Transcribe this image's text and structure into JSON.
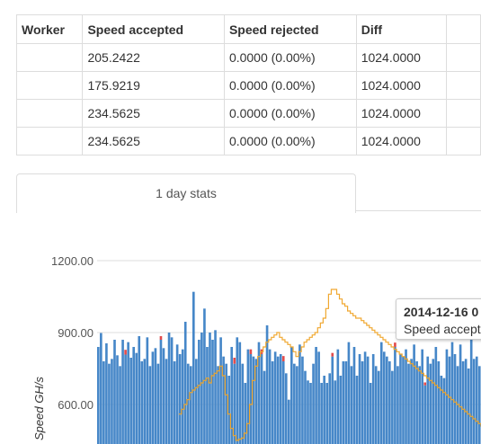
{
  "table": {
    "headers": {
      "worker": "Worker",
      "accepted": "Speed accepted",
      "rejected": "Speed rejected",
      "diff": "Diff"
    },
    "rows": [
      {
        "worker": "",
        "accepted": "205.2422",
        "rejected": "0.0000 (0.00%)",
        "diff": "1024.0000"
      },
      {
        "worker": "",
        "accepted": "175.9219",
        "rejected": "0.0000 (0.00%)",
        "diff": "1024.0000"
      },
      {
        "worker": "",
        "accepted": "234.5625",
        "rejected": "0.0000 (0.00%)",
        "diff": "1024.0000"
      },
      {
        "worker": "",
        "accepted": "234.5625",
        "rejected": "0.0000 (0.00%)",
        "diff": "1024.0000"
      }
    ]
  },
  "tabs": {
    "active_label": "1 day stats"
  },
  "tooltip": {
    "title": "2014-12-16 0",
    "line": "Speed accept"
  },
  "chart_data": {
    "type": "bar",
    "ylabel": "Speed GH/s",
    "ylim": [
      435,
      1270
    ],
    "yticks": [
      "1200.00",
      "900.00",
      "600.00"
    ],
    "ytick_values": [
      1200,
      900,
      600
    ],
    "grid": true,
    "colors": {
      "accepted": "#4687c8",
      "rejected": "#e24b4b",
      "average": "#f0a830"
    },
    "series": [
      {
        "key": "accepted",
        "values": [
          840,
          898,
          780,
          855,
          770,
          790,
          870,
          805,
          760,
          870,
          808,
          860,
          795,
          840,
          815,
          885,
          780,
          790,
          880,
          760,
          820,
          835,
          770,
          870,
          835,
          790,
          900,
          880,
          780,
          850,
          810,
          830,
          945,
          770,
          760,
          1070,
          790,
          870,
          900,
          1000,
          840,
          900,
          870,
          910,
          760,
          880,
          800,
          770,
          720,
          840,
          770,
          880,
          860,
          770,
          690,
          830,
          810,
          800,
          790,
          860,
          810,
          740,
          930,
          830,
          780,
          820,
          800,
          810,
          780,
          730,
          620,
          840,
          770,
          760,
          850,
          800,
          740,
          700,
          690,
          770,
          840,
          820,
          690,
          720,
          690,
          730,
          800,
          700,
          830,
          720,
          780,
          780,
          860,
          760,
          840,
          720,
          810,
          780,
          820,
          800,
          690,
          810,
          760,
          740,
          860,
          820,
          800,
          780,
          740,
          840,
          760,
          810,
          800,
          830,
          770,
          790,
          850,
          780,
          760,
          830,
          680,
          800,
          770,
          790,
          840,
          780,
          720,
          710,
          830,
          800,
          860,
          810,
          760,
          850,
          780,
          790,
          750,
          870,
          790,
          800,
          760
        ],
        "rejected": {
          "10": 20,
          "23": 15,
          "50": 25,
          "56": 20,
          "60": 20,
          "68": 22,
          "86": 15,
          "109": 18,
          "120": 12
        }
      },
      {
        "key": "average",
        "values": [
          null,
          null,
          null,
          null,
          null,
          null,
          null,
          null,
          null,
          null,
          null,
          null,
          null,
          null,
          null,
          null,
          null,
          null,
          null,
          null,
          null,
          null,
          null,
          null,
          null,
          null,
          null,
          null,
          null,
          null,
          560,
          580,
          600,
          620,
          650,
          660,
          670,
          680,
          690,
          700,
          710,
          690,
          720,
          730,
          740,
          760,
          720,
          640,
          560,
          500,
          470,
          450,
          455,
          460,
          480,
          520,
          600,
          700,
          760,
          800,
          820,
          840,
          860,
          870,
          880,
          890,
          900,
          880,
          870,
          860,
          850,
          840,
          820,
          800,
          820,
          840,
          860,
          870,
          880,
          890,
          900,
          920,
          940,
          960,
          1000,
          1060,
          1080,
          1080,
          1060,
          1040,
          1020,
          1010,
          990,
          980,
          970,
          960,
          960,
          950,
          940,
          930,
          920,
          910,
          900,
          890,
          880,
          870,
          860,
          850,
          840,
          830,
          820,
          810,
          800,
          790,
          780,
          770,
          760,
          750,
          740,
          730,
          720,
          710,
          700,
          690,
          680,
          670,
          660,
          650,
          640,
          630,
          620,
          610,
          600,
          590,
          580,
          570,
          560,
          550,
          540,
          530,
          520,
          510
        ]
      }
    ]
  }
}
